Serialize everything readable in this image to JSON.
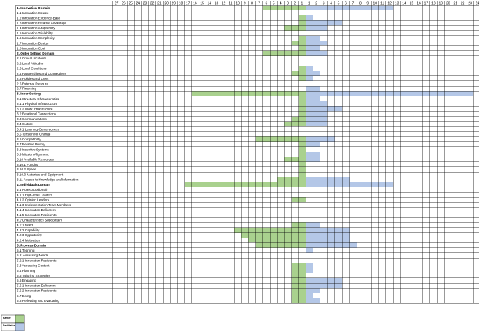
{
  "chart_data": {
    "type": "bar",
    "orientation": "horizontal",
    "layout": "diverging table",
    "left_axis_ticks": [
      27,
      26,
      25,
      24,
      23,
      22,
      21,
      20,
      19,
      18,
      17,
      16,
      15,
      14,
      13,
      12,
      11,
      10,
      9,
      8,
      7,
      6,
      5,
      4,
      3,
      2,
      1
    ],
    "right_axis_ticks": [
      1,
      2,
      3,
      4,
      5,
      6,
      7,
      8,
      9,
      10,
      11,
      12,
      13,
      14,
      15,
      16,
      17,
      18,
      19,
      20,
      21,
      22,
      23,
      24
    ],
    "colors": {
      "barrier": "#a9d18e",
      "facilitator": "#b4c7e7",
      "grid": "#000000"
    },
    "legend": {
      "position": "bottom-left",
      "items": [
        {
          "label": "Barrier",
          "color": "#a9d18e"
        },
        {
          "label": "Facilitator",
          "color": "#b4c7e7"
        }
      ]
    },
    "categories": [
      "1. Innovation Domain",
      "1.1 Innovation Source",
      "1.2 Innovation Evidence-Base",
      "1.3 Innovation Relative Advantage",
      "1.4 Innovation Adaptability",
      "1.5 Innovation Trialability",
      "1.6 Innovation Complexity",
      "1.7 Innovation Design",
      "1.8 Innovation Cost",
      "2. Outer Setting Domain",
      "2.1 Critical Incidents",
      "2.2 Local Attitudes",
      "2.3 Local Conditions",
      "2.4 Partnerships and Connections",
      "2.5 Policies and Laws",
      "2.6 External Pressure",
      "2.7 Financing",
      "3.  Inner Setting",
      "3.1 Structural Characteristics",
      "3.1.1 Physical Infrastructure",
      "3.1.2 Work Infrastructure",
      "3.2 Relational Connections",
      "3.3 Communications",
      "3.4 Culture",
      "3.4.1 Learning-Centeredness",
      "3.5 Tension for Change",
      "3.6 Compatibility",
      "3.7 Relative Priority",
      "3.8 Incentive Systems",
      "3.9 Mission Alignment",
      "3.10 Available Resources",
      "3.10.1 Funding",
      "3.10.2 Space",
      "3.10.3 Materials and Equipment",
      "3.11 Access to Knowledge and Information",
      "4. Individuals Domain",
      "4.1 Roles Subdomain",
      "4.1.1 High-level Leaders",
      "4.1.2 Opinion Leaders",
      "4.1.3 Implementation Team Members",
      "4.1.4 Innovation Deliverers",
      "4.1.5 Innovation Recipients",
      "4.2 Characteristics Subdomain",
      "4.2.1 Need",
      "4.2.2 Capability",
      "4.2.3 Opportunity",
      "4.2.4 Motivation",
      "5. Process Domain",
      "5.1 Teaming",
      "5.2. Assessing Needs",
      "5.2.1 Innovation Recipients",
      "5.3 Assessing Context",
      "5.4 Planning",
      "5.5 Tailoring Strategies",
      "5.6 Engaging",
      "5.6.1 Innovation Deliverers",
      "5.6.2 Innovation Recipients",
      "5.7 Doing",
      "5.8 Reflecting and Evaluating"
    ],
    "bold_categories": [
      "1. Innovation Domain",
      "2. Outer Setting Domain",
      "3.  Inner Setting",
      "4. Individuals Domain",
      "5. Process Domain"
    ],
    "italic_categories": [
      "4.1 Roles Subdomain",
      "4.2 Characteristics Subdomain"
    ],
    "series": [
      {
        "name": "Barrier",
        "values": [
          6,
          0,
          1,
          1,
          3,
          0,
          1,
          2,
          1,
          6,
          0,
          0,
          1,
          2,
          1,
          0,
          0,
          16,
          1,
          1,
          1,
          1,
          2,
          3,
          0,
          0,
          7,
          1,
          1,
          1,
          3,
          1,
          1,
          1,
          4,
          17,
          0,
          0,
          2,
          0,
          0,
          0,
          0,
          2,
          10,
          9,
          8,
          7,
          0,
          0,
          0,
          2,
          2,
          2,
          2,
          2,
          2,
          2,
          2
        ]
      },
      {
        "name": "Facilitator",
        "values": [
          12,
          0,
          1,
          5,
          3,
          0,
          2,
          3,
          2,
          3,
          0,
          0,
          1,
          2,
          1,
          0,
          2,
          23,
          2,
          3,
          5,
          3,
          3,
          3,
          0,
          0,
          4,
          2,
          0,
          2,
          2,
          0,
          0,
          0,
          6,
          12,
          0,
          0,
          0,
          0,
          0,
          0,
          0,
          2,
          6,
          6,
          6,
          7,
          1,
          0,
          0,
          1,
          1,
          0,
          5,
          5,
          2,
          1,
          2
        ]
      }
    ]
  }
}
